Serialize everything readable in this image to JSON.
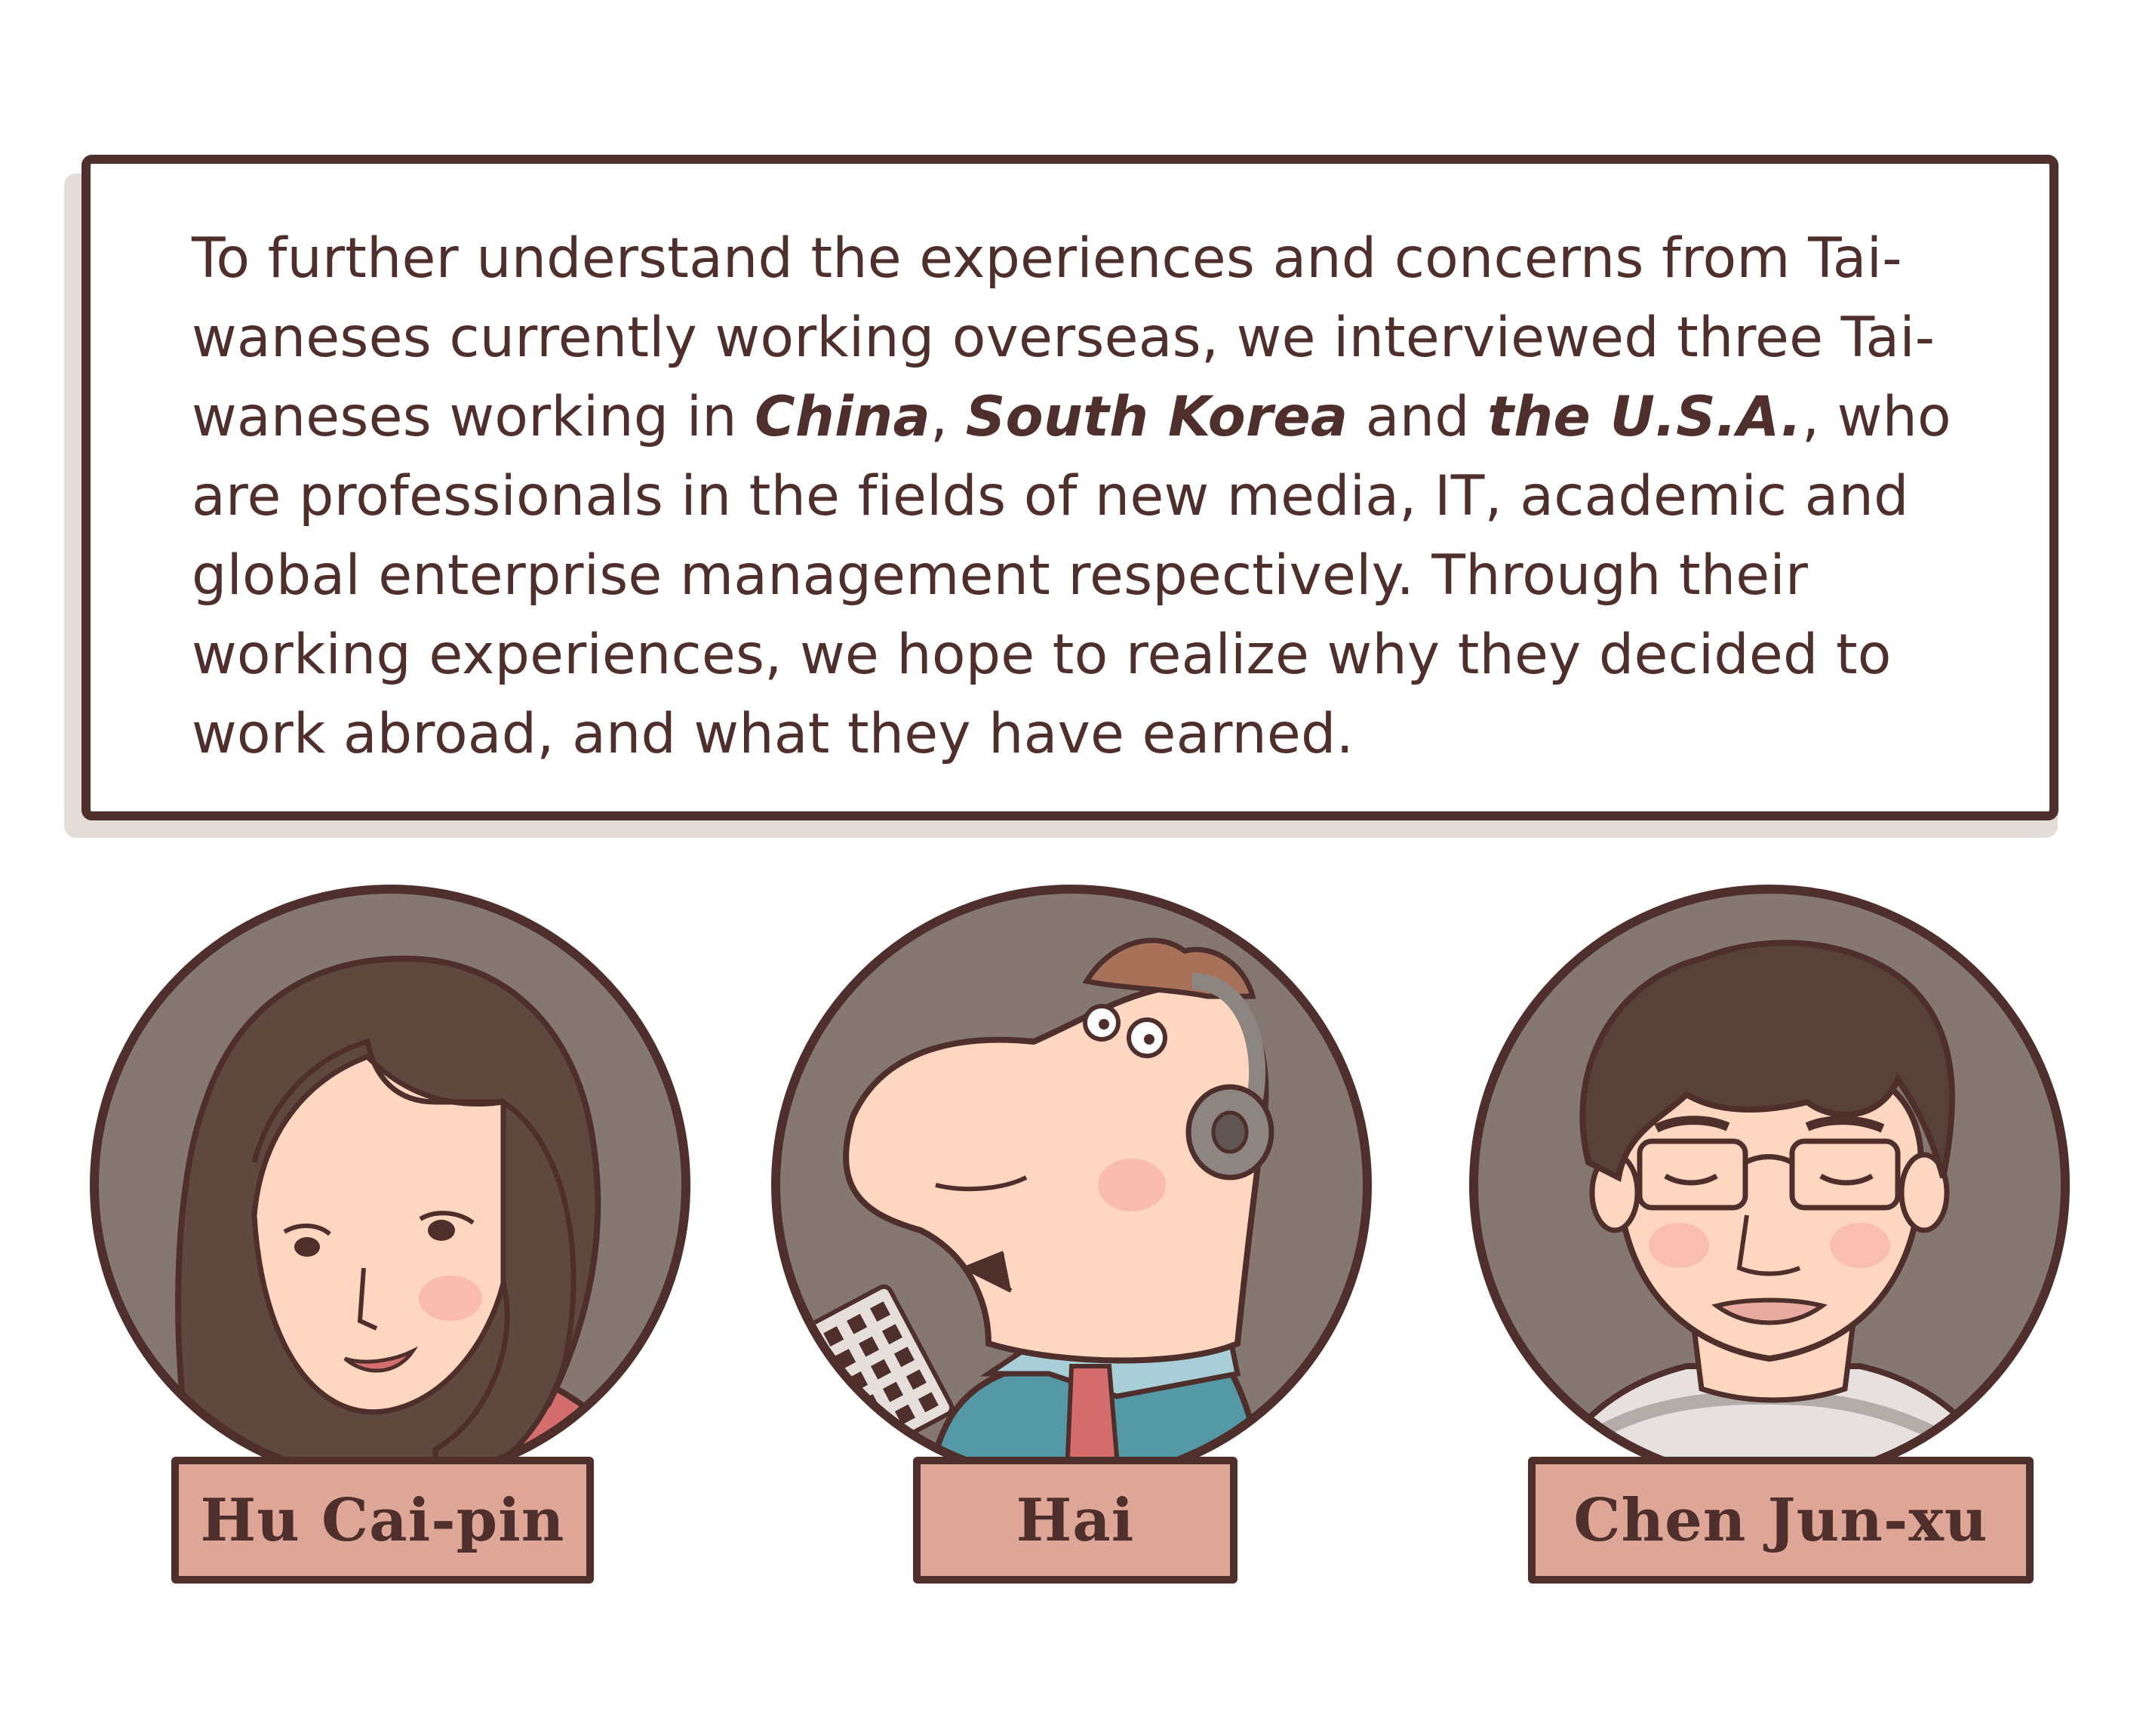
{
  "intro": {
    "text_1": "To further understand the experiences and concerns from Tai-waneses currently working overseas, we interviewed three Tai-waneses working in ",
    "country_1": "China",
    "sep_1": ", ",
    "country_2": "South Korea",
    "sep_2": " and ",
    "country_3": "the U.S.A.",
    "text_2": ", who are professionals in the fields of new media, IT, academic and global enterprise management respectively. Through their working experiences, we hope to realize why they decided to work abroad, and what they have earned."
  },
  "people": [
    {
      "name": "Hu Cai-pin"
    },
    {
      "name": "Hai"
    },
    {
      "name": "Chen Jun-xu"
    }
  ],
  "colors": {
    "outline": "#4f2f2b",
    "portrait_bg": "#857873",
    "name_plate": "#dea696",
    "skin": "#ffd7c0",
    "hair_dark": "#5f493e",
    "shirt_red": "#d46e6e",
    "shirt_teal": "#5499a5",
    "collar_blue": "#a8cfd8"
  },
  "icons": [
    "woman-portrait",
    "cartoon-man-with-headset",
    "man-with-glasses-portrait"
  ]
}
